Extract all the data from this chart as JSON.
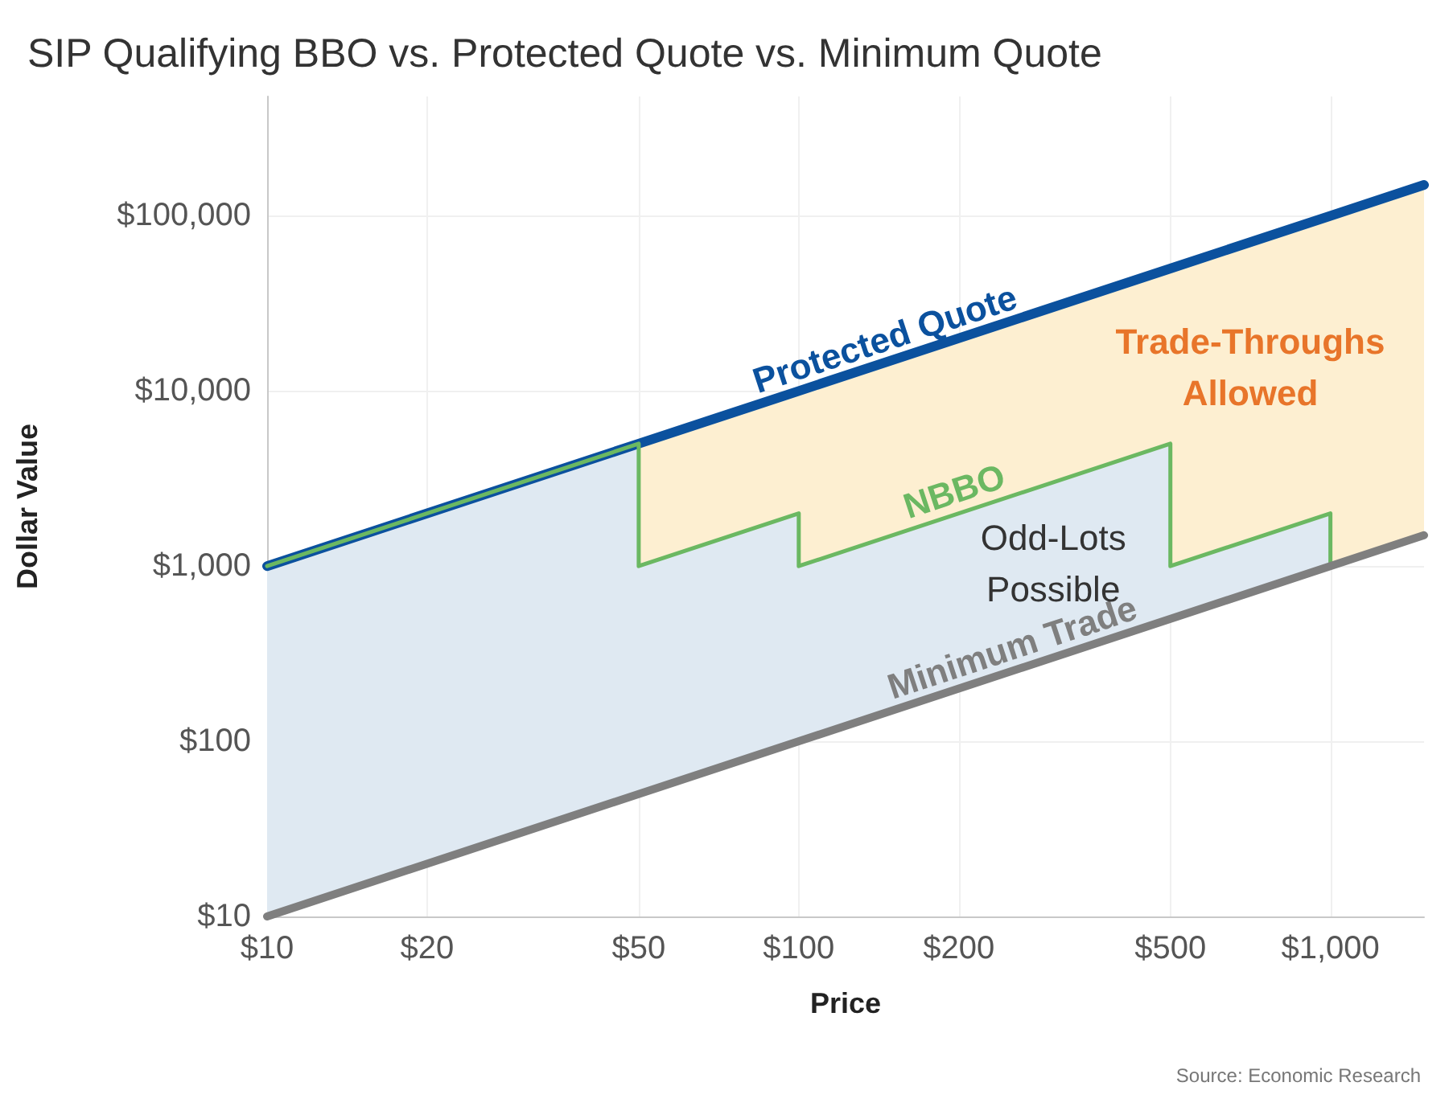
{
  "chart_data": {
    "type": "line",
    "title": "SIP Qualifying BBO vs. Protected Quote vs. Minimum Quote",
    "xlabel": "Price",
    "ylabel": "Dollar Value",
    "log": "xy",
    "grid": true,
    "legend": false,
    "xlim": [
      10,
      1500
    ],
    "xticks": [
      {
        "value": 10,
        "label": "$10"
      },
      {
        "value": 20,
        "label": "$20"
      },
      {
        "value": 50,
        "label": "$50"
      },
      {
        "value": 100,
        "label": "$100"
      },
      {
        "value": 200,
        "label": "$200"
      },
      {
        "value": 500,
        "label": "$500"
      },
      {
        "value": 1000,
        "label": "$1,000"
      }
    ],
    "ylim": [
      10,
      480000
    ],
    "yticks": [
      {
        "value": 10,
        "label": "$10"
      },
      {
        "value": 100,
        "label": "$100"
      },
      {
        "value": 1000,
        "label": "$1,000"
      },
      {
        "value": 10000,
        "label": "$10,000"
      },
      {
        "value": 100000,
        "label": "$100,000"
      }
    ],
    "series": [
      {
        "name": "Protected Quote",
        "color": "#0b519e",
        "x": [
          10,
          50,
          50,
          100,
          100,
          500,
          500,
          1000,
          1000,
          1500
        ],
        "values": [
          1000,
          5000,
          5000,
          10000,
          10000,
          50000,
          50000,
          100000,
          100000,
          150000
        ],
        "lower": [
          1000,
          5000,
          1000,
          2000,
          1000,
          5000,
          1000,
          2000,
          1000,
          1500
        ],
        "upper": [
          1000,
          5000,
          5000,
          10000,
          10000,
          50000,
          50000,
          100000,
          100000,
          150000
        ]
      },
      {
        "name": "NBBO",
        "color": "#6bb862",
        "x": [
          10,
          50,
          50,
          100,
          100,
          500,
          500,
          1000,
          1000,
          1500
        ],
        "values": [
          1000,
          5000,
          1000,
          2000,
          1000,
          5000,
          1000,
          2000,
          1000,
          1500
        ],
        "lower": [
          10,
          50,
          50,
          100,
          100,
          500,
          500,
          1000,
          1000,
          1500
        ],
        "upper": [
          1000,
          5000,
          1000,
          2000,
          1000,
          5000,
          1000,
          2000,
          1000,
          1500
        ]
      },
      {
        "name": "Minimum Trade",
        "color": "#7f7f7f",
        "x": [
          10,
          1500
        ],
        "values": [
          10,
          1500
        ]
      }
    ],
    "annotations": [
      "Trade-Throughs Allowed",
      "Odd-Lots Possible",
      "Source: Economic Research"
    ]
  }
}
